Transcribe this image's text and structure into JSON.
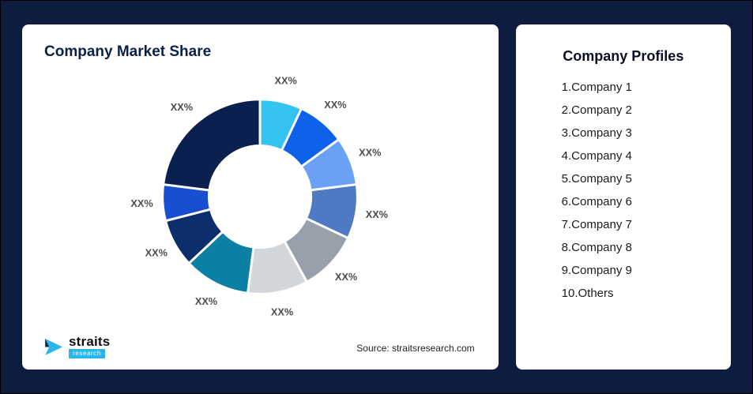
{
  "page": {
    "background": "#0e1c3f",
    "card_background": "#ffffff",
    "accent_cyan": "#29b6e8",
    "title_navy": "#0b2049"
  },
  "left_card": {
    "title": "Company Market Share",
    "source": "Source: straitsresearch.com"
  },
  "logo": {
    "name": "straits",
    "sub": "research"
  },
  "profiles": {
    "title": "Company Profiles",
    "items": [
      "1.Company 1",
      "2.Company 2",
      "3.Company 3",
      "4.Company 4",
      "5.Company 5",
      "6.Company 6",
      "7.Company 7",
      "8.Company 8",
      "9.Company 9",
      "10.Others"
    ]
  },
  "chart_data": {
    "type": "pie",
    "variant": "donut",
    "title": "Company Market Share",
    "direction": "clockwise",
    "start_angle_deg": 0,
    "donut_hole_ratio": 0.52,
    "legend": "none",
    "note": "All slice data labels display the placeholder text XX%; shares below are visual estimates of each slice's angular size",
    "slices": [
      {
        "label": "XX%",
        "est_share_pct": 7,
        "color": "#35c3f2"
      },
      {
        "label": "XX%",
        "est_share_pct": 8,
        "color": "#0d62e9"
      },
      {
        "label": "XX%",
        "est_share_pct": 8,
        "color": "#6aa1f4"
      },
      {
        "label": "XX%",
        "est_share_pct": 9,
        "color": "#4d7ac2"
      },
      {
        "label": "XX%",
        "est_share_pct": 10,
        "color": "#98a0ab"
      },
      {
        "label": "XX%",
        "est_share_pct": 10,
        "color": "#d3d6db"
      },
      {
        "label": "XX%",
        "est_share_pct": 11,
        "color": "#0c7fa4"
      },
      {
        "label": "XX%",
        "est_share_pct": 8,
        "color": "#0d2e6d"
      },
      {
        "label": "XX%",
        "est_share_pct": 6,
        "color": "#174fd0"
      },
      {
        "label": "XX%",
        "est_share_pct": 23,
        "color": "#0a2150"
      }
    ]
  }
}
